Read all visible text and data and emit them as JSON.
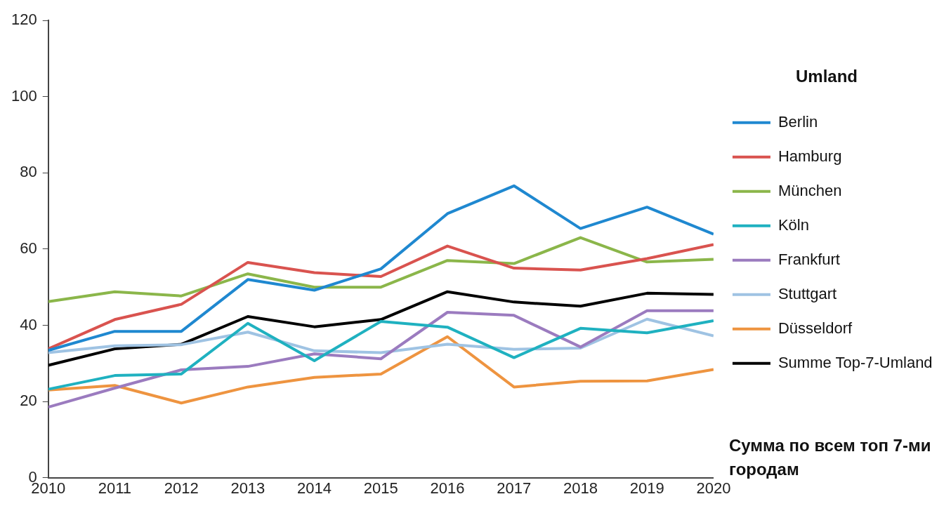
{
  "chart_data": {
    "type": "line",
    "x": [
      2010,
      2011,
      2012,
      2013,
      2014,
      2015,
      2016,
      2017,
      2018,
      2019,
      2020
    ],
    "xlim": [
      2010,
      2020
    ],
    "xticks": [
      2010,
      2011,
      2012,
      2013,
      2014,
      2015,
      2016,
      2017,
      2018,
      2019,
      2020
    ],
    "ylim": [
      0,
      120
    ],
    "yticks": [
      0,
      20,
      40,
      60,
      80,
      100,
      120
    ],
    "grid": false,
    "legend": "right",
    "legend_title": "Umland",
    "marker": "none",
    "line_style": "solid",
    "series": [
      {
        "name": "Berlin",
        "color": "#1f88d0",
        "values": [
          33.4,
          38.4,
          38.4,
          52,
          49.2,
          54.8,
          69.3,
          76.6,
          65.4,
          71,
          63.9
        ]
      },
      {
        "name": "Hamburg",
        "color": "#d9534f",
        "values": [
          33.8,
          41.5,
          45.5,
          56.5,
          53.8,
          52.8,
          60.8,
          55,
          54.5,
          57.5,
          61.2
        ]
      },
      {
        "name": "München",
        "color": "#8bb64a",
        "values": [
          46.2,
          48.8,
          47.7,
          53.5,
          50,
          50,
          57,
          56.2,
          63,
          56.6,
          57.3
        ]
      },
      {
        "name": "Köln",
        "color": "#1fb1c0",
        "values": [
          23.2,
          26.8,
          27.2,
          40.5,
          30.7,
          41,
          39.5,
          31.5,
          39.2,
          38,
          41.2
        ]
      },
      {
        "name": "Frankfurt",
        "color": "#9b7bbf",
        "values": [
          18.5,
          23.5,
          28.3,
          29.2,
          32.5,
          31.2,
          43.4,
          42.6,
          34.3,
          43.8,
          43.8
        ]
      },
      {
        "name": "Stuttgart",
        "color": "#9fc3e3",
        "values": [
          32.8,
          34.6,
          34.9,
          38.2,
          33.3,
          32.8,
          35,
          33.7,
          34,
          41.6,
          37.2
        ]
      },
      {
        "name": "Düsseldorf",
        "color": "#ee9440",
        "values": [
          23,
          24.2,
          19.6,
          23.8,
          26.3,
          27.2,
          37,
          23.8,
          25.3,
          25.4,
          28.4
        ]
      },
      {
        "name": "Summe Top-7-Umland",
        "color": "#000000",
        "values": [
          29.5,
          33.8,
          35,
          42.3,
          39.6,
          41.5,
          48.8,
          46.1,
          45,
          48.4,
          48.1
        ]
      }
    ],
    "annotations": [
      "Сумма по всем топ 7-ми городам"
    ]
  }
}
